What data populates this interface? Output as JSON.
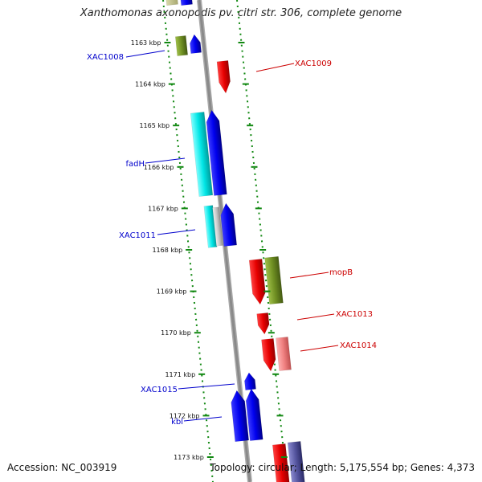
{
  "title": "Xanthomonas axonopodis pv. citri str. 306, complete genome",
  "accession_text": "Accession: NC_003919",
  "summary_text": "Topology: circular; Length: 5,175,554 bp; Genes: 4,373",
  "colors": {
    "forward_strand": "#0000ee",
    "reverse_strand": "#ee0000",
    "backbone": "#888888",
    "ticks": "#118811"
  },
  "ticks": [
    "1163 kbp",
    "1164 kbp",
    "1165 kbp",
    "1166 kbp",
    "1167 kbp",
    "1168 kbp",
    "1169 kbp",
    "1170 kbp",
    "1171 kbp",
    "1172 kbp",
    "1173 kbp"
  ],
  "gene_labels": {
    "left": [
      "XAC1008",
      "fadH",
      "XAC1011",
      "XAC1015",
      "kbl"
    ],
    "right": [
      "XAC1009",
      "mopB",
      "XAC1013",
      "XAC1014"
    ]
  }
}
